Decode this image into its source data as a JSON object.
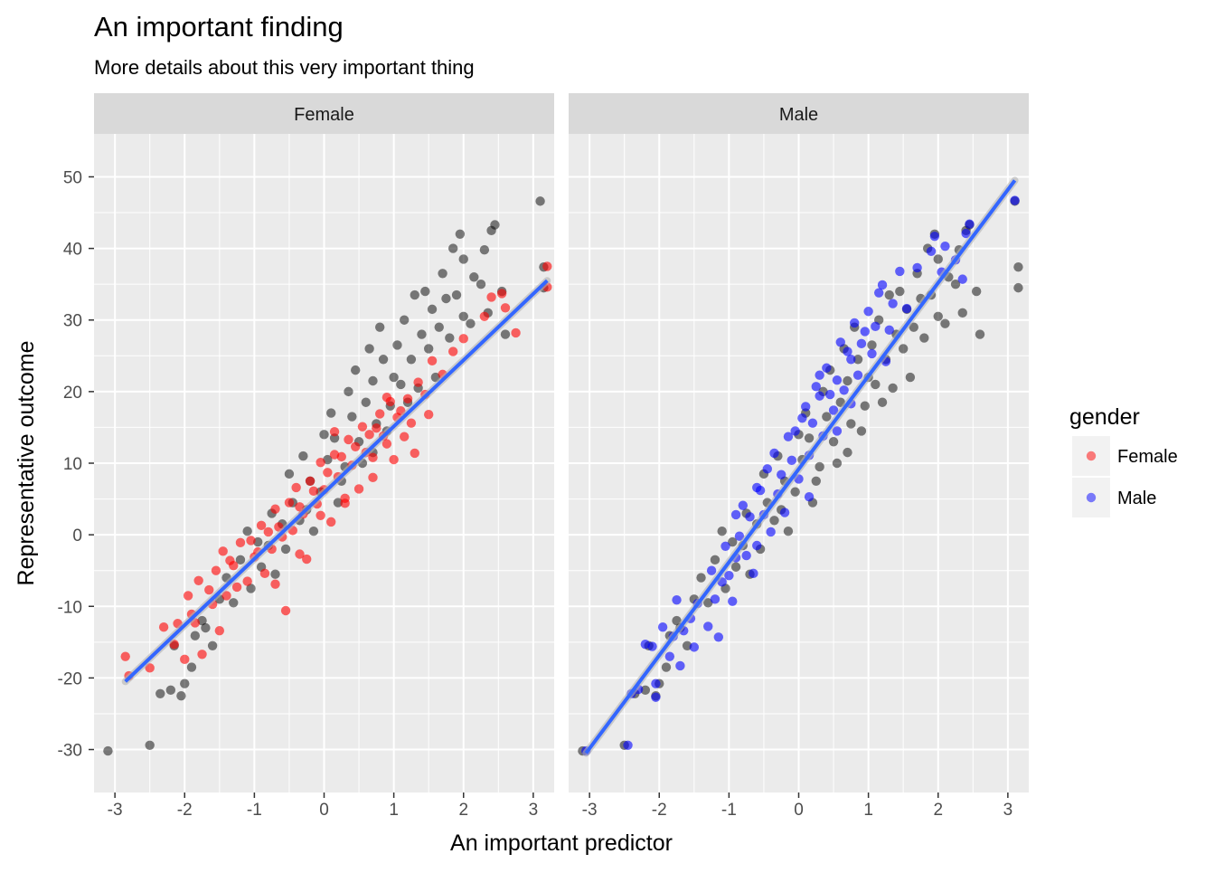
{
  "chart_data": {
    "type": "scatter",
    "title": "An important finding",
    "subtitle": "More details about this very important thing",
    "xlabel": "An important predictor",
    "ylabel": "Representative outcome",
    "xlim": [
      -3.3,
      3.3
    ],
    "ylim": [
      -36,
      56
    ],
    "x_ticks": [
      -3,
      -2,
      -1,
      0,
      1,
      2,
      3
    ],
    "y_ticks": [
      -30,
      -20,
      -10,
      0,
      10,
      20,
      30,
      40,
      50
    ],
    "grid": true,
    "legend": {
      "title": "gender",
      "placement": "right",
      "entries": [
        {
          "label": "Female",
          "color": "#ff0000"
        },
        {
          "label": "Male",
          "color": "#0000ff"
        }
      ]
    },
    "facets": [
      {
        "name": "Female",
        "highlight_color": "#ff0000",
        "fit": {
          "x": [
            -2.85,
            3.2
          ],
          "y": [
            -20.5,
            35.5
          ]
        }
      },
      {
        "name": "Male",
        "highlight_color": "#0000ff",
        "fit": {
          "x": [
            -3.05,
            3.1
          ],
          "y": [
            -30.5,
            49.5
          ]
        }
      }
    ],
    "series": [
      {
        "name": "Female",
        "color": "#ff0000",
        "fit_slope": 9.2,
        "fit_intercept": 5.6,
        "points": [
          [
            -2.85,
            -17
          ],
          [
            -2.8,
            -19.7
          ],
          [
            -2.5,
            -18.6
          ],
          [
            -2.3,
            -12.9
          ],
          [
            -2.15,
            -15.3
          ],
          [
            -2.0,
            -17.4
          ],
          [
            -1.95,
            -8.5
          ],
          [
            -1.85,
            -12.3
          ],
          [
            -1.75,
            -16.7
          ],
          [
            -1.9,
            -11.1
          ],
          [
            -1.8,
            -6.4
          ],
          [
            -1.6,
            -9.7
          ],
          [
            -1.55,
            -5.0
          ],
          [
            -1.5,
            -13.4
          ],
          [
            -1.4,
            -8.5
          ],
          [
            -1.3,
            -4.3
          ],
          [
            -1.2,
            -1.1
          ],
          [
            -1.1,
            -6.5
          ],
          [
            -1.0,
            -3.1
          ],
          [
            -0.9,
            1.3
          ],
          [
            -0.85,
            -5.4
          ],
          [
            -0.75,
            -2.0
          ],
          [
            -0.7,
            3.6
          ],
          [
            -0.6,
            -0.3
          ],
          [
            -0.55,
            -10.6
          ],
          [
            -0.5,
            4.5
          ],
          [
            -0.45,
            0.6
          ],
          [
            -0.4,
            6.6
          ],
          [
            -0.3,
            2.9
          ],
          [
            -0.25,
            -3.4
          ],
          [
            -0.2,
            7.5
          ],
          [
            -0.1,
            4.3
          ],
          [
            -0.05,
            10.1
          ],
          [
            0.0,
            6.3
          ],
          [
            0.1,
            1.8
          ],
          [
            0.15,
            11.2
          ],
          [
            0.2,
            8.1
          ],
          [
            0.3,
            5.1
          ],
          [
            0.35,
            13.3
          ],
          [
            0.4,
            9.7
          ],
          [
            0.5,
            6.4
          ],
          [
            0.55,
            15.1
          ],
          [
            0.6,
            11.5
          ],
          [
            0.7,
            8.0
          ],
          [
            0.75,
            14.9
          ],
          [
            0.8,
            16.9
          ],
          [
            0.9,
            12.7
          ],
          [
            0.95,
            18.6
          ],
          [
            1.0,
            10.5
          ],
          [
            1.1,
            17.3
          ],
          [
            1.2,
            19.0
          ],
          [
            1.25,
            15.6
          ],
          [
            1.35,
            21.3
          ],
          [
            1.45,
            19.6
          ],
          [
            1.55,
            24.3
          ],
          [
            1.7,
            22.4
          ],
          [
            1.85,
            25.6
          ],
          [
            2.0,
            27.4
          ],
          [
            2.3,
            30.5
          ],
          [
            2.4,
            33.2
          ],
          [
            2.55,
            33.7
          ],
          [
            2.6,
            31.7
          ],
          [
            2.75,
            28.2
          ],
          [
            3.2,
            37.5
          ],
          [
            3.2,
            34.6
          ],
          [
            -1.25,
            -7.3
          ],
          [
            -0.95,
            -2.4
          ],
          [
            -0.65,
            1.1
          ],
          [
            -0.35,
            3.9
          ],
          [
            -0.15,
            6.1
          ],
          [
            0.05,
            8.7
          ],
          [
            0.25,
            10.9
          ],
          [
            0.45,
            12.3
          ],
          [
            0.65,
            14.0
          ],
          [
            0.85,
            13.8
          ],
          [
            1.05,
            16.4
          ],
          [
            -1.65,
            -7.7
          ],
          [
            -1.35,
            -3.6
          ],
          [
            -1.05,
            -0.8
          ],
          [
            -0.8,
            0.4
          ],
          [
            -0.05,
            2.7
          ],
          [
            0.3,
            4.4
          ],
          [
            0.7,
            10.8
          ],
          [
            1.15,
            13.7
          ],
          [
            1.5,
            16.8
          ],
          [
            -2.1,
            -12.4
          ],
          [
            -1.45,
            -2.3
          ],
          [
            0.15,
            14.4
          ],
          [
            0.9,
            19.2
          ],
          [
            1.3,
            11.4
          ],
          [
            -0.35,
            -2.7
          ],
          [
            -0.7,
            -6.9
          ]
        ]
      },
      {
        "name": "Male",
        "color": "#0000ff",
        "fit_slope": 13.0,
        "fit_intercept": 9.2,
        "points": [
          [
            -3.05,
            -30.2
          ],
          [
            -2.45,
            -29.4
          ],
          [
            -2.4,
            -22.2
          ],
          [
            -2.3,
            -21.6
          ],
          [
            -2.05,
            -22.7
          ],
          [
            -2.05,
            -20.8
          ],
          [
            -2.2,
            -15.3
          ],
          [
            -1.95,
            -12.9
          ],
          [
            -1.85,
            -17.0
          ],
          [
            -1.8,
            -14.2
          ],
          [
            -1.7,
            -18.3
          ],
          [
            -1.65,
            -13.4
          ],
          [
            -1.5,
            -15.7
          ],
          [
            -1.45,
            -9.6
          ],
          [
            -1.3,
            -12.8
          ],
          [
            -1.2,
            -9.0
          ],
          [
            -1.15,
            -14.3
          ],
          [
            -1.1,
            -6.6
          ],
          [
            -1.0,
            -5.7
          ],
          [
            -0.95,
            -9.3
          ],
          [
            -0.9,
            -3.2
          ],
          [
            -0.85,
            -0.2
          ],
          [
            -0.75,
            -2.9
          ],
          [
            -0.7,
            2.5
          ],
          [
            -0.6,
            -1.5
          ],
          [
            -0.55,
            6.2
          ],
          [
            -0.5,
            2.8
          ],
          [
            -0.45,
            9.2
          ],
          [
            -0.4,
            0.4
          ],
          [
            -0.3,
            5.7
          ],
          [
            -0.25,
            8.4
          ],
          [
            -0.2,
            3.1
          ],
          [
            -0.1,
            10.4
          ],
          [
            -0.05,
            14.5
          ],
          [
            0.0,
            7.8
          ],
          [
            0.1,
            17.9
          ],
          [
            0.15,
            11.1
          ],
          [
            0.2,
            15.6
          ],
          [
            0.3,
            19.4
          ],
          [
            0.35,
            13.8
          ],
          [
            0.4,
            23.3
          ],
          [
            0.5,
            17.4
          ],
          [
            0.55,
            21.6
          ],
          [
            0.6,
            26.9
          ],
          [
            0.65,
            20.2
          ],
          [
            0.75,
            24.5
          ],
          [
            0.8,
            29.6
          ],
          [
            0.85,
            22.3
          ],
          [
            0.9,
            26.7
          ],
          [
            1.0,
            31.2
          ],
          [
            1.05,
            25.3
          ],
          [
            1.1,
            29.1
          ],
          [
            1.2,
            34.9
          ],
          [
            1.3,
            28.6
          ],
          [
            1.35,
            32.3
          ],
          [
            1.45,
            36.8
          ],
          [
            1.55,
            31.6
          ],
          [
            1.7,
            37.3
          ],
          [
            1.9,
            39.6
          ],
          [
            1.95,
            41.7
          ],
          [
            2.05,
            36.7
          ],
          [
            2.1,
            40.3
          ],
          [
            2.25,
            38.4
          ],
          [
            2.35,
            35.7
          ],
          [
            2.4,
            42.1
          ],
          [
            2.45,
            43.4
          ],
          [
            3.1,
            46.7
          ],
          [
            -0.8,
            4.1
          ],
          [
            -0.6,
            6.6
          ],
          [
            -0.35,
            11.4
          ],
          [
            -0.15,
            13.7
          ],
          [
            0.05,
            16.3
          ],
          [
            0.25,
            20.7
          ],
          [
            0.45,
            19.6
          ],
          [
            0.7,
            25.6
          ],
          [
            0.95,
            28.4
          ],
          [
            1.15,
            33.8
          ],
          [
            -1.55,
            -11.7
          ],
          [
            -1.25,
            -5.0
          ],
          [
            -1.05,
            -1.6
          ],
          [
            -0.65,
            -5.4
          ],
          [
            0.15,
            5.3
          ],
          [
            0.55,
            14.5
          ],
          [
            1.25,
            24.2
          ],
          [
            -2.1,
            -15.6
          ],
          [
            -1.75,
            -9.1
          ],
          [
            -0.9,
            2.8
          ],
          [
            0.3,
            22.3
          ],
          [
            0.75,
            18.3
          ]
        ]
      },
      {
        "name": "",
        "color": "#000000",
        "points": [
          [
            -3.1,
            -30.2
          ],
          [
            -2.5,
            -29.4
          ],
          [
            -2.35,
            -22.2
          ],
          [
            -2.2,
            -21.7
          ],
          [
            -2.05,
            -22.5
          ],
          [
            -2.0,
            -20.8
          ],
          [
            -2.15,
            -15.5
          ],
          [
            -1.9,
            -18.5
          ],
          [
            -1.85,
            -14.1
          ],
          [
            -1.7,
            -13.0
          ],
          [
            -1.6,
            -15.5
          ],
          [
            -1.3,
            -9.5
          ],
          [
            -1.05,
            -7.5
          ],
          [
            -0.9,
            -4.5
          ],
          [
            -0.8,
            -1.5
          ],
          [
            -0.7,
            -5.5
          ],
          [
            -0.6,
            1.5
          ],
          [
            -0.45,
            4.5
          ],
          [
            -0.35,
            2.0
          ],
          [
            -0.2,
            7.5
          ],
          [
            -0.05,
            6.0
          ],
          [
            0.05,
            10.5
          ],
          [
            0.15,
            13.5
          ],
          [
            0.3,
            9.5
          ],
          [
            0.4,
            16.5
          ],
          [
            0.5,
            13.0
          ],
          [
            0.6,
            18.5
          ],
          [
            0.7,
            21.5
          ],
          [
            0.75,
            15.5
          ],
          [
            0.85,
            24.5
          ],
          [
            1.0,
            22.0
          ],
          [
            1.05,
            26.5
          ],
          [
            1.15,
            30.0
          ],
          [
            1.25,
            24.5
          ],
          [
            1.3,
            33.5
          ],
          [
            1.4,
            28.0
          ],
          [
            1.55,
            31.5
          ],
          [
            1.7,
            36.5
          ],
          [
            1.75,
            33.0
          ],
          [
            1.85,
            40.0
          ],
          [
            1.95,
            42.0
          ],
          [
            2.0,
            38.5
          ],
          [
            2.15,
            36.0
          ],
          [
            2.25,
            35.0
          ],
          [
            2.4,
            42.5
          ],
          [
            2.45,
            43.3
          ],
          [
            3.1,
            46.6
          ],
          [
            -1.5,
            -9.0
          ],
          [
            -1.2,
            -3.5
          ],
          [
            -0.95,
            -1.0
          ],
          [
            -0.25,
            3.5
          ],
          [
            0.25,
            7.5
          ],
          [
            0.55,
            10.0
          ],
          [
            0.95,
            18.0
          ],
          [
            1.2,
            18.5
          ],
          [
            1.5,
            26.0
          ],
          [
            1.6,
            22.0
          ],
          [
            2.1,
            29.5
          ],
          [
            -0.5,
            8.5
          ],
          [
            0.0,
            14.0
          ],
          [
            0.35,
            20.0
          ],
          [
            0.65,
            26.0
          ],
          [
            1.1,
            21.0
          ],
          [
            1.35,
            20.5
          ],
          [
            1.8,
            27.5
          ],
          [
            2.55,
            34.0
          ],
          [
            2.35,
            31.0
          ],
          [
            -1.4,
            -6.0
          ],
          [
            -1.1,
            0.5
          ],
          [
            -0.75,
            3.0
          ],
          [
            -0.3,
            11.0
          ],
          [
            0.1,
            17.0
          ],
          [
            0.45,
            23.0
          ],
          [
            0.8,
            29.0
          ],
          [
            1.45,
            34.0
          ],
          [
            2.0,
            30.5
          ],
          [
            2.6,
            28.0
          ],
          [
            3.15,
            37.4
          ],
          [
            3.15,
            34.5
          ],
          [
            -1.75,
            -12.0
          ],
          [
            -0.15,
            0.5
          ],
          [
            0.2,
            4.5
          ],
          [
            0.9,
            14.5
          ],
          [
            1.65,
            29.0
          ],
          [
            -0.55,
            -2.0
          ],
          [
            0.7,
            11.5
          ],
          [
            1.9,
            33.5
          ],
          [
            2.3,
            39.8
          ]
        ]
      }
    ]
  }
}
